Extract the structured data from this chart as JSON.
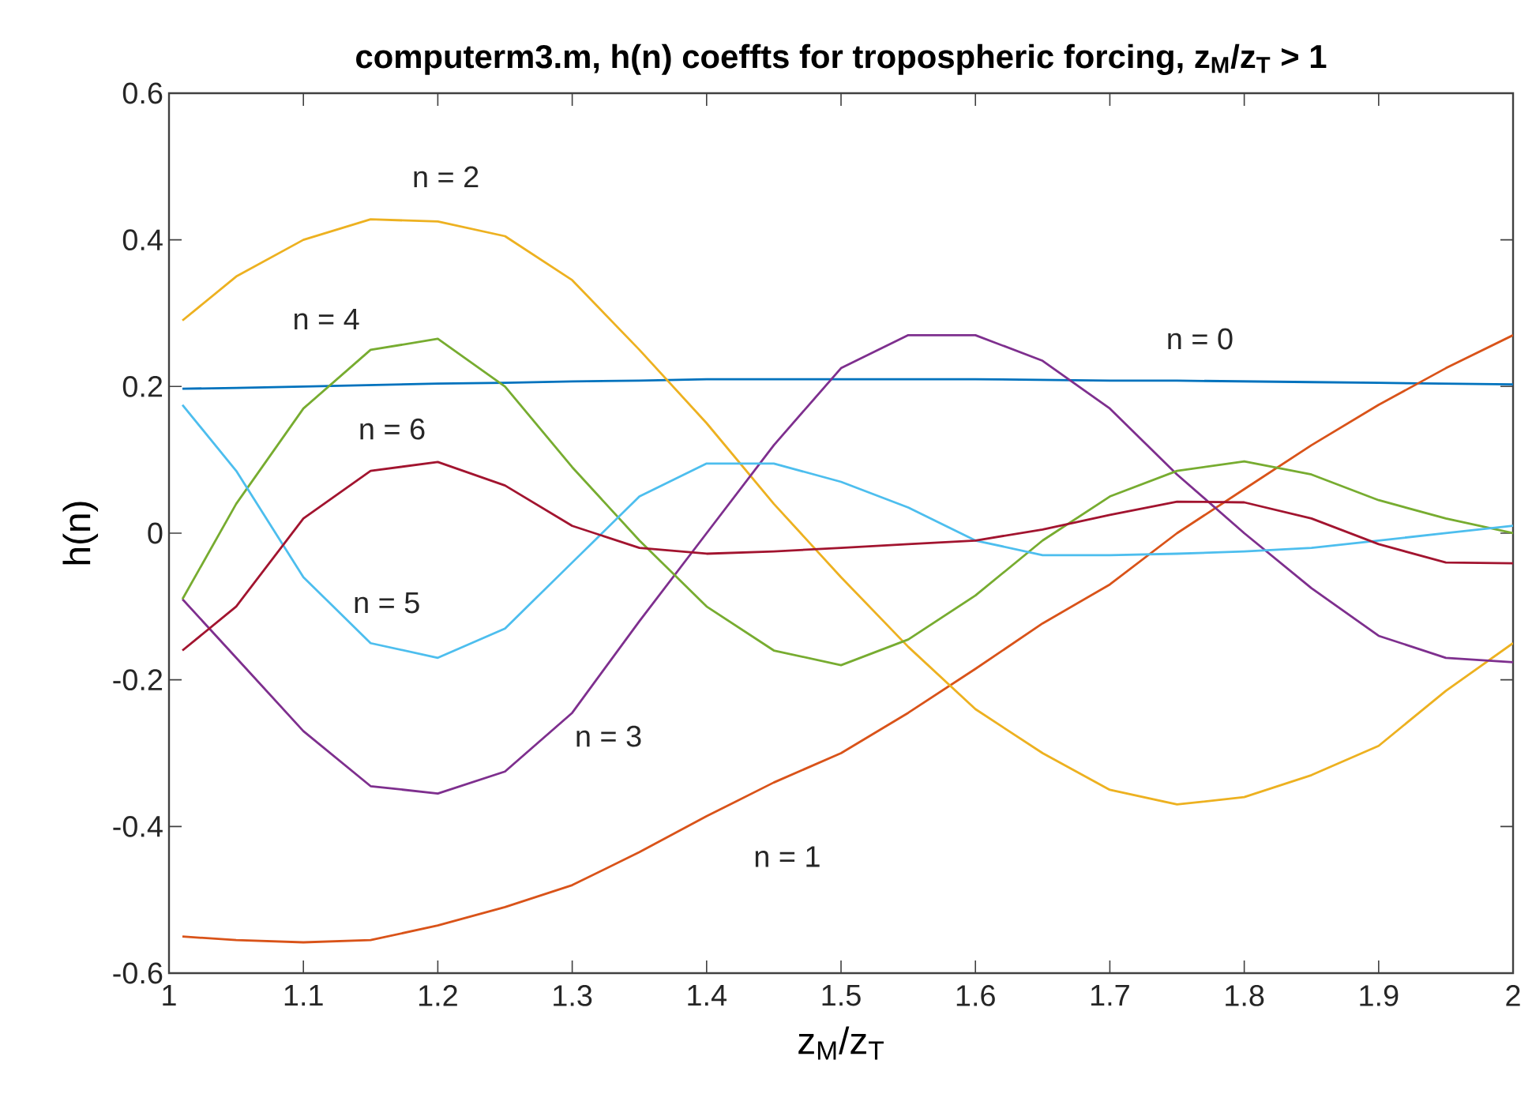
{
  "chart_data": {
    "type": "line",
    "title": "computerm3.m, h(n) coeffts for tropospheric forcing, z$_{M}$/z$_{T}$ > 1",
    "xlabel": "z$_{M}$/z$_{T}$",
    "ylabel": "h(n)",
    "x": [
      1.01,
      1.05,
      1.1,
      1.15,
      1.2,
      1.25,
      1.3,
      1.35,
      1.4,
      1.45,
      1.5,
      1.55,
      1.6,
      1.65,
      1.7,
      1.75,
      1.8,
      1.85,
      1.9,
      1.95,
      2.0
    ],
    "series": [
      {
        "name": "n = 0",
        "color": "#0072bd",
        "values": [
          0.197,
          0.198,
          0.2,
          0.202,
          0.204,
          0.205,
          0.207,
          0.208,
          0.21,
          0.21,
          0.21,
          0.21,
          0.21,
          0.209,
          0.208,
          0.208,
          0.207,
          0.206,
          0.205,
          0.204,
          0.203
        ]
      },
      {
        "name": "n = 1",
        "color": "#d95319",
        "values": [
          -0.55,
          -0.555,
          -0.558,
          -0.555,
          -0.535,
          -0.51,
          -0.48,
          -0.435,
          -0.386,
          -0.34,
          -0.3,
          -0.245,
          -0.185,
          -0.123,
          -0.07,
          0.0,
          0.06,
          0.12,
          0.175,
          0.225,
          0.27
        ]
      },
      {
        "name": "n = 2",
        "color": "#edb120",
        "values": [
          0.29,
          0.35,
          0.4,
          0.428,
          0.425,
          0.405,
          0.345,
          0.25,
          0.15,
          0.04,
          -0.06,
          -0.155,
          -0.24,
          -0.3,
          -0.35,
          -0.37,
          -0.36,
          -0.33,
          -0.29,
          -0.215,
          -0.15
        ]
      },
      {
        "name": "n = 3",
        "color": "#7e2f8e",
        "values": [
          -0.09,
          -0.17,
          -0.27,
          -0.345,
          -0.355,
          -0.325,
          -0.245,
          -0.12,
          0.0,
          0.12,
          0.225,
          0.27,
          0.27,
          0.235,
          0.17,
          0.08,
          0.0,
          -0.075,
          -0.14,
          -0.17,
          -0.176
        ]
      },
      {
        "name": "n = 4",
        "color": "#77ac30",
        "values": [
          -0.09,
          0.04,
          0.17,
          0.25,
          0.265,
          0.2,
          0.09,
          -0.01,
          -0.1,
          -0.16,
          -0.18,
          -0.145,
          -0.085,
          -0.01,
          0.05,
          0.085,
          0.098,
          0.08,
          0.045,
          0.02,
          0.0
        ]
      },
      {
        "name": "n = 5",
        "color": "#4dbeee",
        "values": [
          0.175,
          0.085,
          -0.06,
          -0.15,
          -0.17,
          -0.13,
          -0.04,
          0.05,
          0.095,
          0.095,
          0.07,
          0.035,
          -0.01,
          -0.03,
          -0.03,
          -0.028,
          -0.025,
          -0.02,
          -0.01,
          0.0,
          0.01
        ]
      },
      {
        "name": "n = 6",
        "color": "#a2142f",
        "values": [
          -0.16,
          -0.1,
          0.02,
          0.085,
          0.097,
          0.065,
          0.01,
          -0.02,
          -0.028,
          -0.025,
          -0.02,
          -0.015,
          -0.01,
          0.005,
          0.025,
          0.043,
          0.042,
          0.02,
          -0.015,
          -0.04,
          -0.041
        ]
      }
    ],
    "xlim": [
      1,
      2
    ],
    "ylim": [
      -0.6,
      0.6
    ],
    "xticks": [
      1,
      1.1,
      1.2,
      1.3,
      1.4,
      1.5,
      1.6,
      1.7,
      1.8,
      1.9,
      2
    ],
    "yticks": [
      -0.6,
      -0.4,
      -0.2,
      0,
      0.2,
      0.4,
      0.6
    ],
    "grid": false,
    "marker": "none",
    "line_style": "solid"
  }
}
